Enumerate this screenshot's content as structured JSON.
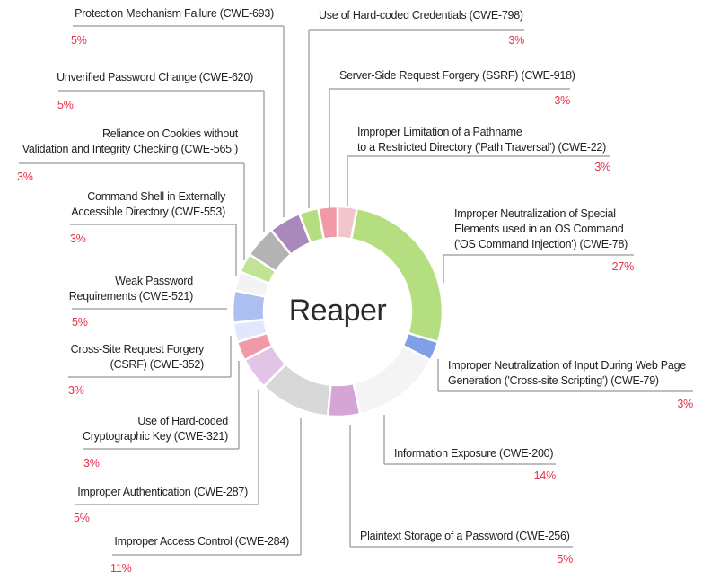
{
  "chart_data": {
    "type": "pie",
    "subtype": "donut",
    "title": "Reaper",
    "unit": "%",
    "order": "clockwise from top",
    "slices": [
      {
        "label": "Improper Limitation of a Pathname\nto a Restricted Directory ('Path Traversal') (CWE-22)",
        "value": 3,
        "pct": "3%",
        "color": "#f2c4cc"
      },
      {
        "label": "Improper Neutralization of Special\nElements used in an OS Command\n('OS Command Injection') (CWE-78)",
        "value": 27,
        "pct": "27%",
        "color": "#b5de80"
      },
      {
        "label": "Improper Neutralization of Input During Web Page\nGeneration ('Cross-site Scripting') (CWE-79)",
        "value": 3,
        "pct": "3%",
        "color": "#7f9fe6"
      },
      {
        "label": "Information Exposure (CWE-200)",
        "value": 14,
        "pct": "14%",
        "color": "#f4f4f4"
      },
      {
        "label": "Plaintext Storage of a Password (CWE-256)",
        "value": 5,
        "pct": "5%",
        "color": "#d4a5d6"
      },
      {
        "label": "Improper Access Control (CWE-284)",
        "value": 11,
        "pct": "11%",
        "color": "#d8d8d8"
      },
      {
        "label": "Improper Authentication (CWE-287)",
        "value": 5,
        "pct": "5%",
        "color": "#e4c4e6"
      },
      {
        "label": "Use of Hard-coded\nCryptographic Key (CWE-321)",
        "value": 3,
        "pct": "3%",
        "color": "#ef9aa6"
      },
      {
        "label": "Cross-Site Request Forgery\n(CSRF) (CWE-352)",
        "value": 3,
        "pct": "3%",
        "color": "#e2e8fb"
      },
      {
        "label": "Weak Password\nRequirements (CWE-521)",
        "value": 5,
        "pct": "5%",
        "color": "#adbff0"
      },
      {
        "label": "Command Shell in Externally\nAccessible Directory (CWE-553)",
        "value": 3,
        "pct": "3%",
        "color": "#f3f3f3"
      },
      {
        "label": "Reliance on Cookies without\nValidation and Integrity Checking (CWE-565 )",
        "value": 3,
        "pct": "3%",
        "color": "#c0e395"
      },
      {
        "label": "Unverified Password Change (CWE-620)",
        "value": 5,
        "pct": "5%",
        "color": "#b3b3b3"
      },
      {
        "label": "Protection Mechanism Failure (CWE-693)",
        "value": 5,
        "pct": "5%",
        "color": "#ab88bb"
      },
      {
        "label": "Use of Hard-coded Credentials (CWE-798)",
        "value": 3,
        "pct": "3%",
        "color": "#b5de80"
      },
      {
        "label": "Server-Side Request Forgery (SSRF) (CWE-918)",
        "value": 3,
        "pct": "3%",
        "color": "#ef9aa6"
      }
    ]
  }
}
